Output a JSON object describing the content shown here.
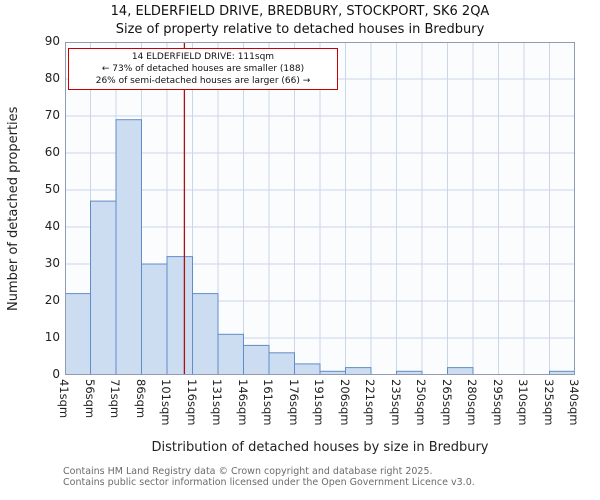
{
  "chart_data": {
    "type": "bar",
    "title": "14, ELDERFIELD DRIVE, BREDBURY, STOCKPORT, SK6 2QA",
    "subtitle": "Size of property relative to detached houses in Bredbury",
    "xlabel": "Distribution of detached houses by size in Bredbury",
    "ylabel": "Number of detached properties",
    "categories": [
      "41sqm",
      "56sqm",
      "71sqm",
      "86sqm",
      "101sqm",
      "116sqm",
      "131sqm",
      "146sqm",
      "161sqm",
      "176sqm",
      "191sqm",
      "206sqm",
      "221sqm",
      "235sqm",
      "250sqm",
      "265sqm",
      "280sqm",
      "295sqm",
      "310sqm",
      "325sqm",
      "340sqm"
    ],
    "values": [
      22,
      47,
      69,
      30,
      32,
      22,
      11,
      8,
      6,
      3,
      1,
      2,
      0,
      1,
      0,
      2,
      0,
      0,
      0,
      1
    ],
    "ylim": [
      0,
      90
    ],
    "ytick_step": 10,
    "x_min_sqm": 41,
    "x_max_sqm": 340,
    "grid": true,
    "legend": "none",
    "marker": {
      "value_sqm": 111
    },
    "colors": {
      "bar_fill": "#ccdcf1",
      "bar_border": "#5f8dc9",
      "grid": "#c9d6ec",
      "plot_bg": "#fbfcfe",
      "axis": "#8f9bb0",
      "marker": "#aa1111"
    }
  },
  "annotation": {
    "line1": "14 ELDERFIELD DRIVE: 111sqm",
    "line2": "← 73% of detached houses are smaller (188)",
    "line3": "26% of semi-detached houses are larger (66) →"
  },
  "footer": {
    "line1": "Contains HM Land Registry data © Crown copyright and database right 2025.",
    "line2": "Contains public sector information licensed under the Open Government Licence v3.0."
  }
}
